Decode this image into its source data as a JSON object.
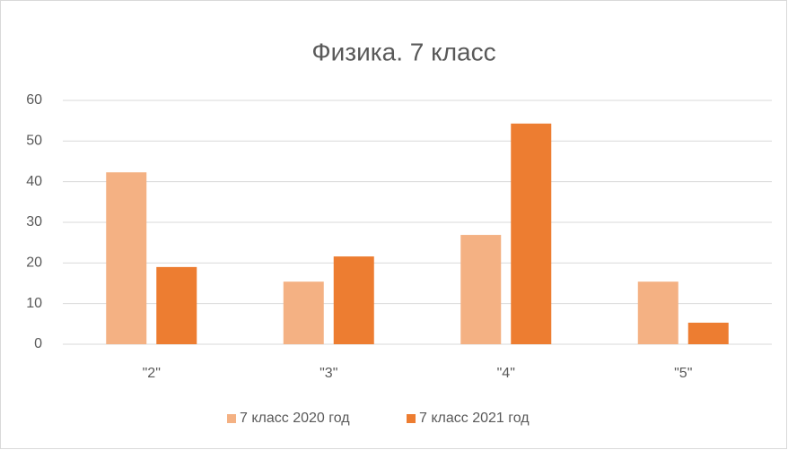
{
  "chart_data": {
    "type": "bar",
    "title": "Физика. 7 класс",
    "categories": [
      "\"2\"",
      "\"3\"",
      "\"4\"",
      "\"5\""
    ],
    "series": [
      {
        "name": "7 класс 2020 год",
        "color": "#f4b183",
        "values": [
          42.3,
          15.4,
          26.9,
          15.4
        ]
      },
      {
        "name": "7 класс 2021 год",
        "color": "#ed7d31",
        "values": [
          19.0,
          21.6,
          54.3,
          5.3
        ]
      }
    ],
    "ylim": [
      0,
      60
    ],
    "yticks": [
      0,
      10,
      20,
      30,
      40,
      50,
      60
    ],
    "grid": true,
    "legend": "bottom"
  }
}
